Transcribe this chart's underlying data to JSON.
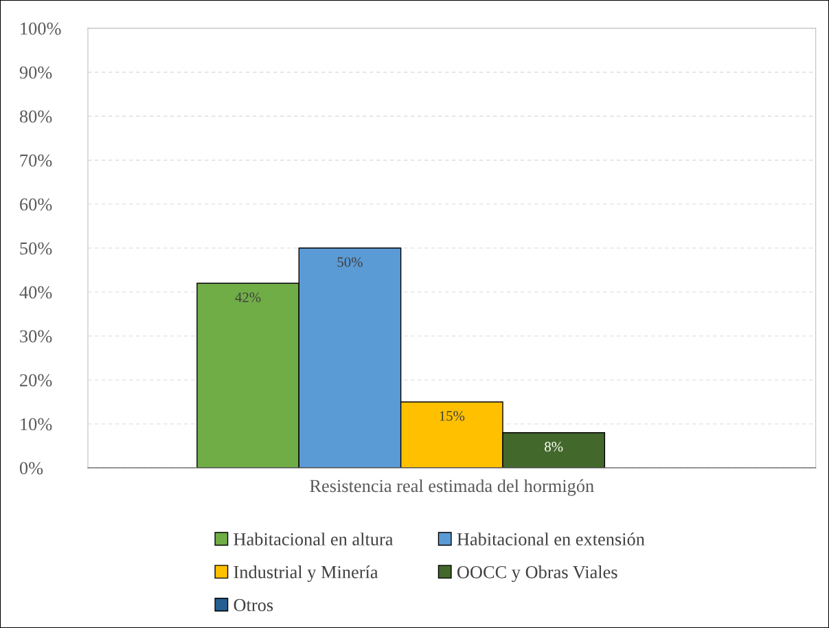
{
  "chart_data": {
    "type": "bar",
    "categories": [
      "Resistencia real estimada del hormigón"
    ],
    "series": [
      {
        "name": "Habitacional en altura",
        "color": "#70ad47",
        "values": [
          42
        ],
        "value_labels": [
          "42%"
        ]
      },
      {
        "name": "Habitacional en extensión",
        "color": "#5b9bd5",
        "values": [
          50
        ],
        "value_labels": [
          "50%"
        ]
      },
      {
        "name": "Industrial y Minería",
        "color": "#ffc000",
        "values": [
          15
        ],
        "value_labels": [
          "15%"
        ]
      },
      {
        "name": "OOCC y Obras Viales",
        "color": "#43682b",
        "values": [
          8
        ],
        "value_labels": [
          "8%"
        ]
      },
      {
        "name": "Otros",
        "color": "#255e91",
        "values": [
          null
        ],
        "value_labels": [
          null
        ]
      }
    ],
    "ylim": [
      0,
      100
    ],
    "yticks": [
      {
        "value": 0,
        "label": "0%"
      },
      {
        "value": 10,
        "label": "10%"
      },
      {
        "value": 20,
        "label": "20%"
      },
      {
        "value": 30,
        "label": "30%"
      },
      {
        "value": 40,
        "label": "40%"
      },
      {
        "value": 50,
        "label": "50%"
      },
      {
        "value": 60,
        "label": "60%"
      },
      {
        "value": 70,
        "label": "70%"
      },
      {
        "value": 80,
        "label": "80%"
      },
      {
        "value": 90,
        "label": "90%"
      },
      {
        "value": 100,
        "label": "100%"
      }
    ],
    "grid": "y",
    "legend": "bottom"
  }
}
